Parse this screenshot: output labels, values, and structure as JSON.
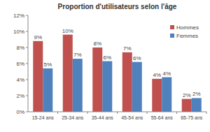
{
  "chart_data": {
    "type": "bar",
    "title": "Proportion d'utilisateurs selon l'âge",
    "categories": [
      "15-24 ans",
      "25-34 ans",
      "35-44 ans",
      "45-54 ans",
      "55-64 ans",
      "65-75 ans"
    ],
    "series": [
      {
        "name": "Hommes",
        "color": "#c0504d",
        "values": [
          8.8,
          9.6,
          8.0,
          7.4,
          4.1,
          1.6
        ],
        "value_labels": [
          "9%",
          "10%",
          "8%",
          "7%",
          "4%",
          "2%"
        ]
      },
      {
        "name": "Femmes",
        "color": "#4f81bd",
        "values": [
          5.4,
          6.6,
          6.3,
          6.2,
          4.3,
          1.7
        ],
        "value_labels": [
          "5%",
          "7%",
          "6%",
          "6%",
          "4%",
          "2%"
        ]
      }
    ],
    "ylim": [
      0,
      12
    ],
    "yticks": [
      {
        "value": 0,
        "label": "0%"
      },
      {
        "value": 2,
        "label": "2%"
      },
      {
        "value": 4,
        "label": "4%"
      },
      {
        "value": 6,
        "label": "6%"
      },
      {
        "value": 8,
        "label": "8%"
      },
      {
        "value": 10,
        "label": "10%"
      },
      {
        "value": 12,
        "label": "12%"
      }
    ],
    "grid": false,
    "legend": "upper right",
    "data_labels": true
  }
}
